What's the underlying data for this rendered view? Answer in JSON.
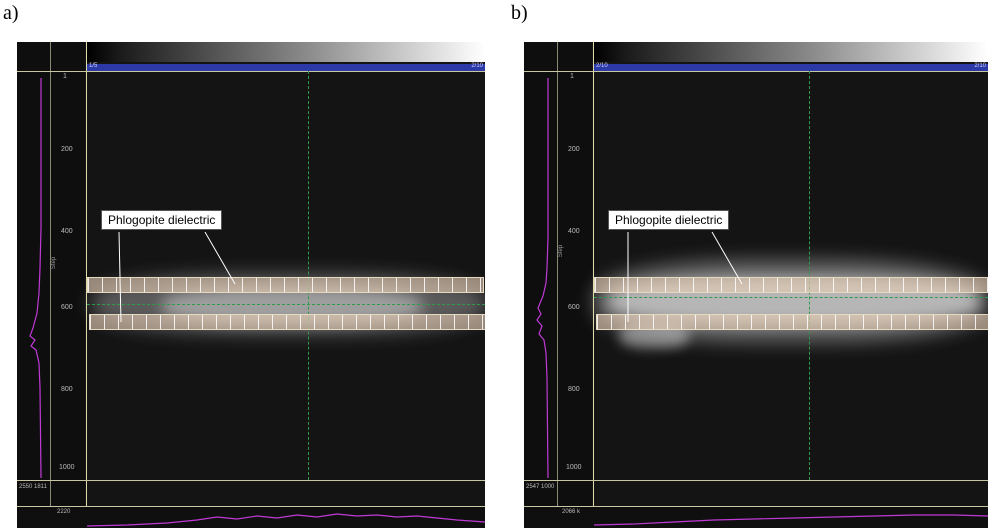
{
  "panels": [
    {
      "label": "a)",
      "bar_left": "1/5",
      "bar_right": "2/10",
      "y_ticks": [
        "1",
        "200",
        "400",
        "600",
        "800",
        "1000"
      ],
      "callout": "Phlogopite dielectric",
      "axis_small": "Step",
      "bottom_values": [
        "2550",
        "1811"
      ],
      "bottom_tick": "2220"
    },
    {
      "label": "b)",
      "bar_left": "2/10",
      "bar_right": "2/10",
      "y_ticks": [
        "1",
        "200",
        "400",
        "600",
        "800",
        "1000"
      ],
      "callout": "Phlogopite dielectric",
      "axis_small": "Step",
      "bottom_values": [
        "2547",
        "1000"
      ],
      "bottom_tick": "2066 k"
    }
  ],
  "colors": {
    "background": "#141414",
    "strip_fill": "#e7cdb4",
    "profile_line": "#c03ad6",
    "crosshair": "#2f9a4a"
  }
}
